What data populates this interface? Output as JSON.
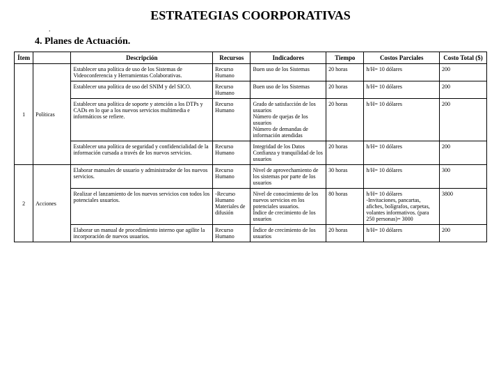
{
  "header": {
    "title": "ESTRATEGIAS COORPORATIVAS",
    "dot": ".",
    "subtitle": "4. Planes de Actuación."
  },
  "table": {
    "columns": [
      "Ítem",
      "",
      "Descripción",
      "Recursos",
      "Indicadores",
      "Tiempo",
      "Costos Parciales",
      "Costo Total ($)"
    ],
    "rows": [
      {
        "desc": "Establecer una política de uso de los Sistemas de Videoconferencia y Herramientas Colaborativas.",
        "rec": "Recurso Humano",
        "ind": "Buen uso de los Sistemas",
        "time": "20 horas",
        "cp": "h/H= 10 dólares",
        "ct": "200"
      },
      {
        "desc": "Establecer una política de uso del SNIM y del SICO.",
        "rec": "Recurso Humano",
        "ind": "Buen uso de los Sistemas",
        "time": "20 horas",
        "cp": "h/H= 10 dólares",
        "ct": "200"
      },
      {
        "item": "1",
        "cat": "Políticas",
        "desc": "Establecer una política de soporte y atención a los DTPs y CADs en lo que a los nuevos servicios multimedia e informáticos se refiere.",
        "rec": "Recurso Humano",
        "ind": "Grado de satisfacción de los usuarios\nNúmero de quejas de los usuarios\nNúmero de demandas de información atendidas",
        "time": "20 horas",
        "cp": "h/H= 10 dólares",
        "ct": "200"
      },
      {
        "desc": "Establecer una política de seguridad y confidencialidad de la información cursada a través de los nuevos servicios.",
        "rec": "Recurso Humano",
        "ind": "Integridad de los Datos\nConfianza y tranquilidad de los usuarios",
        "time": "20 horas",
        "cp": "h/H= 10 dólares",
        "ct": "200"
      },
      {
        "desc": "Elaborar manuales de usuario y administrador de los nuevos servicios.",
        "rec": "Recurso Humano",
        "ind": "Nivel de aprovechamiento de los sistemas por parte de los usuarios",
        "time": "30 horas",
        "cp": "h/H= 10 dólares",
        "ct": "300"
      },
      {
        "item": "2",
        "cat": "Acciones",
        "desc": "Realizar el lanzamiento de los nuevos servicios con todos los potenciales usuarios.",
        "rec": "-Recurso Humano\nMateriales de difusión",
        "ind": "Nivel de conocimiento de los nuevos servicios en los potenciales usuarios.\nÍndice de crecimiento de los usuarios",
        "time": "80 horas",
        "cp": "h/H= 10 dólares\n-Invitaciones, pancartas, afiches, bolígrafos, carpetas, volantes informativos. (para 250 personas)= 3000",
        "ct": "3800"
      },
      {
        "desc": "Elaborar un manual de procedimiento interno que agilite la incorporación de nuevos usuarios.",
        "rec": "Recurso Humano",
        "ind": "Índice de crecimiento de los usuarios",
        "time": "20 horas",
        "cp": "h/H= 10 dólares",
        "ct": "200"
      }
    ]
  }
}
